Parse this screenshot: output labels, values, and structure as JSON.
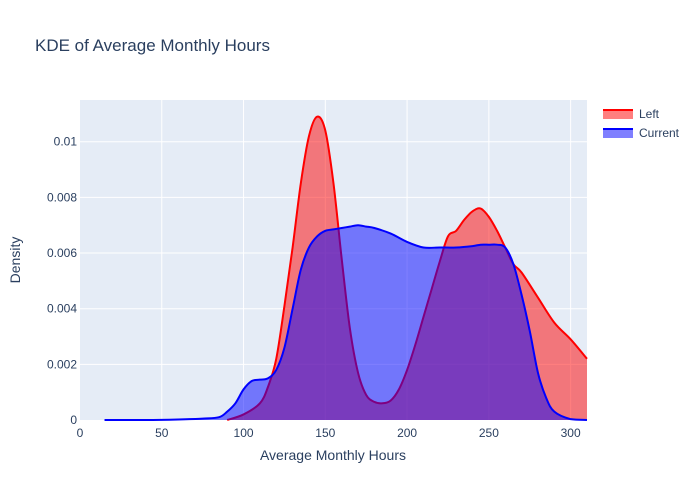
{
  "chart_data": {
    "type": "area",
    "title": "KDE of Average Monthly Hours",
    "xlabel": "Average Monthly Hours",
    "ylabel": "Density",
    "xlim": [
      0,
      310
    ],
    "ylim": [
      0,
      0.0115
    ],
    "x_ticks": [
      0,
      50,
      100,
      150,
      200,
      250,
      300
    ],
    "y_ticks": [
      0,
      0.002,
      0.004,
      0.006,
      0.008,
      0.01
    ],
    "y_tick_labels": [
      "0",
      "0.002",
      "0.004",
      "0.006",
      "0.008",
      "0.01"
    ],
    "grid": true,
    "legend_position": "top-right",
    "series": [
      {
        "name": "Left",
        "line_color": "#ff0000",
        "fill_color": "rgba(255,0,0,0.5)",
        "x": [
          90,
          100,
          110,
          115,
          120,
          125,
          130,
          135,
          140,
          145,
          150,
          155,
          160,
          165,
          170,
          175,
          180,
          185,
          190,
          195,
          200,
          205,
          210,
          215,
          220,
          225,
          230,
          235,
          240,
          245,
          250,
          255,
          260,
          265,
          270,
          280,
          290,
          300,
          310
        ],
        "y": [
          0.0,
          0.0002,
          0.0006,
          0.0012,
          0.0022,
          0.0041,
          0.0062,
          0.0085,
          0.0102,
          0.0109,
          0.0104,
          0.0085,
          0.0058,
          0.0033,
          0.0017,
          0.0009,
          0.00065,
          0.0006,
          0.0007,
          0.0011,
          0.0018,
          0.0027,
          0.0037,
          0.0047,
          0.0057,
          0.0066,
          0.0068,
          0.0072,
          0.0075,
          0.0076,
          0.0073,
          0.0068,
          0.0062,
          0.0056,
          0.0053,
          0.0044,
          0.0035,
          0.0029,
          0.0022
        ]
      },
      {
        "name": "Current",
        "line_color": "#0000ff",
        "fill_color": "rgba(0,0,255,0.5)",
        "x": [
          15,
          40,
          60,
          75,
          85,
          90,
          95,
          100,
          105,
          110,
          115,
          120,
          125,
          130,
          135,
          140,
          145,
          150,
          155,
          160,
          165,
          170,
          175,
          180,
          190,
          200,
          210,
          220,
          230,
          240,
          245,
          250,
          255,
          260,
          265,
          270,
          275,
          280,
          285,
          290,
          300,
          310
        ],
        "y": [
          0.0,
          0.0,
          2e-05,
          5e-05,
          0.0001,
          0.0003,
          0.0006,
          0.0011,
          0.0014,
          0.00145,
          0.0015,
          0.0018,
          0.0026,
          0.004,
          0.0054,
          0.0062,
          0.0066,
          0.0068,
          0.00685,
          0.0069,
          0.00695,
          0.007,
          0.00695,
          0.0069,
          0.0067,
          0.0064,
          0.0062,
          0.0062,
          0.0062,
          0.00625,
          0.0063,
          0.0063,
          0.0063,
          0.0062,
          0.0056,
          0.0045,
          0.0032,
          0.0017,
          0.0008,
          0.0003,
          3e-05,
          0.0
        ]
      }
    ]
  }
}
